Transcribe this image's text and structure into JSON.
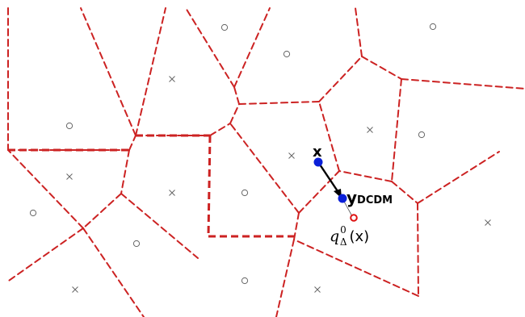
{
  "diagram": {
    "edge_color": "#cc2222",
    "marker_color": "#666666",
    "point_color": "#0a1fd8",
    "quantized_color": "#dd1111",
    "arrow_color": "#000000"
  },
  "labels": {
    "x": "x",
    "y_main": "y",
    "y_sub": "DCDM",
    "q_main": "q",
    "q_sub": "Δ",
    "q_sup": "0",
    "q_arg": "(x)"
  }
}
